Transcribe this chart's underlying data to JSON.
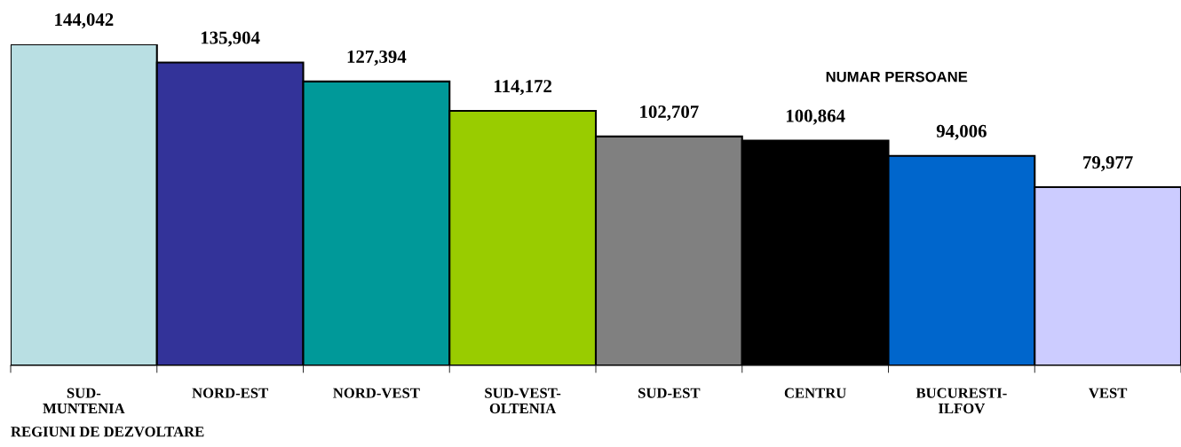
{
  "chart_data": {
    "type": "bar",
    "title": "NUMAR PERSOANE",
    "xlabel": "REGIUNI DE DEZVOLTARE",
    "categories": [
      "SUD-MUNTENIA",
      "NORD-EST",
      "NORD-VEST",
      "SUD-VEST-OLTENIA",
      "SUD-EST",
      "CENTRU",
      "BUCURESTI-ILFOV",
      "VEST"
    ],
    "values": [
      144042,
      135904,
      127394,
      114172,
      102707,
      100864,
      94006,
      79977
    ],
    "colors": [
      "#b9dfe3",
      "#333399",
      "#009999",
      "#99cc00",
      "#808080",
      "#000000",
      "#0066cc",
      "#ccccff"
    ],
    "value_labels": [
      "144,042",
      "135,904",
      "127,394",
      "114,172",
      "102,707",
      "100,864",
      "94,006",
      "79,977"
    ],
    "grid": false,
    "legend": false
  }
}
